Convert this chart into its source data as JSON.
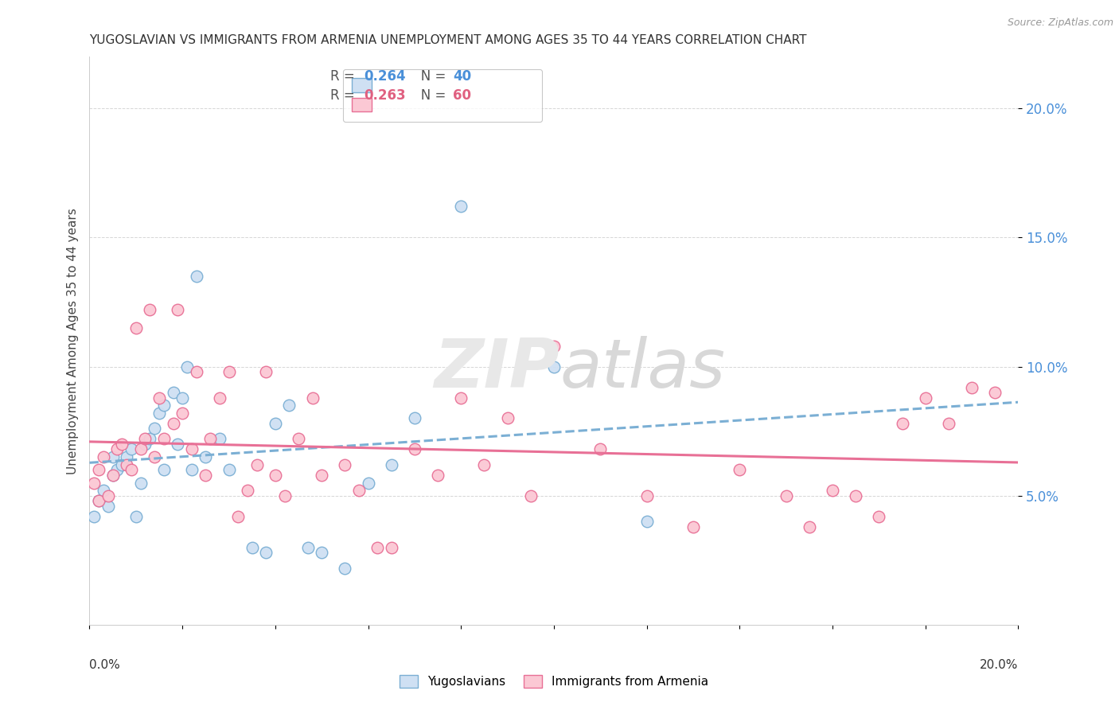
{
  "title": "YUGOSLAVIAN VS IMMIGRANTS FROM ARMENIA UNEMPLOYMENT AMONG AGES 35 TO 44 YEARS CORRELATION CHART",
  "source": "Source: ZipAtlas.com",
  "ylabel": "Unemployment Among Ages 35 to 44 years",
  "xlim": [
    0.0,
    0.2
  ],
  "ylim": [
    0.0,
    0.22
  ],
  "yticks": [
    0.05,
    0.1,
    0.15,
    0.2
  ],
  "ytick_labels": [
    "5.0%",
    "10.0%",
    "15.0%",
    "20.0%"
  ],
  "r_yugo": 0.264,
  "n_yugo": 40,
  "r_armenia": 0.263,
  "n_armenia": 60,
  "color_yugo_fill": "#cfe0f3",
  "color_yugo_edge": "#7bafd4",
  "color_armenia_fill": "#fbc8d4",
  "color_armenia_edge": "#e87096",
  "color_yugo_line": "#7bafd4",
  "color_armenia_line": "#e87096",
  "color_yugo_text": "#4a90d9",
  "color_armenia_text": "#e06080",
  "color_axis_text": "#4a90d9",
  "yugo_x": [
    0.001,
    0.002,
    0.003,
    0.004,
    0.005,
    0.005,
    0.006,
    0.007,
    0.008,
    0.009,
    0.01,
    0.011,
    0.012,
    0.013,
    0.014,
    0.015,
    0.016,
    0.016,
    0.018,
    0.019,
    0.02,
    0.021,
    0.022,
    0.023,
    0.025,
    0.028,
    0.03,
    0.035,
    0.038,
    0.04,
    0.043,
    0.047,
    0.05,
    0.055,
    0.06,
    0.065,
    0.07,
    0.08,
    0.1,
    0.12
  ],
  "yugo_y": [
    0.042,
    0.048,
    0.052,
    0.046,
    0.058,
    0.065,
    0.06,
    0.062,
    0.065,
    0.068,
    0.042,
    0.055,
    0.07,
    0.072,
    0.076,
    0.082,
    0.06,
    0.085,
    0.09,
    0.07,
    0.088,
    0.1,
    0.06,
    0.135,
    0.065,
    0.072,
    0.06,
    0.03,
    0.028,
    0.078,
    0.085,
    0.03,
    0.028,
    0.022,
    0.055,
    0.062,
    0.08,
    0.162,
    0.1,
    0.04
  ],
  "armenia_x": [
    0.001,
    0.002,
    0.002,
    0.003,
    0.004,
    0.005,
    0.006,
    0.007,
    0.008,
    0.009,
    0.01,
    0.011,
    0.012,
    0.013,
    0.014,
    0.015,
    0.016,
    0.018,
    0.019,
    0.02,
    0.022,
    0.023,
    0.025,
    0.026,
    0.028,
    0.03,
    0.032,
    0.034,
    0.036,
    0.038,
    0.04,
    0.042,
    0.045,
    0.048,
    0.05,
    0.055,
    0.058,
    0.062,
    0.065,
    0.07,
    0.075,
    0.08,
    0.085,
    0.09,
    0.095,
    0.1,
    0.11,
    0.12,
    0.13,
    0.14,
    0.15,
    0.155,
    0.16,
    0.165,
    0.17,
    0.175,
    0.18,
    0.185,
    0.19,
    0.195
  ],
  "armenia_y": [
    0.055,
    0.06,
    0.048,
    0.065,
    0.05,
    0.058,
    0.068,
    0.07,
    0.062,
    0.06,
    0.115,
    0.068,
    0.072,
    0.122,
    0.065,
    0.088,
    0.072,
    0.078,
    0.122,
    0.082,
    0.068,
    0.098,
    0.058,
    0.072,
    0.088,
    0.098,
    0.042,
    0.052,
    0.062,
    0.098,
    0.058,
    0.05,
    0.072,
    0.088,
    0.058,
    0.062,
    0.052,
    0.03,
    0.03,
    0.068,
    0.058,
    0.088,
    0.062,
    0.08,
    0.05,
    0.108,
    0.068,
    0.05,
    0.038,
    0.06,
    0.05,
    0.038,
    0.052,
    0.05,
    0.042,
    0.078,
    0.088,
    0.078,
    0.092,
    0.09
  ]
}
